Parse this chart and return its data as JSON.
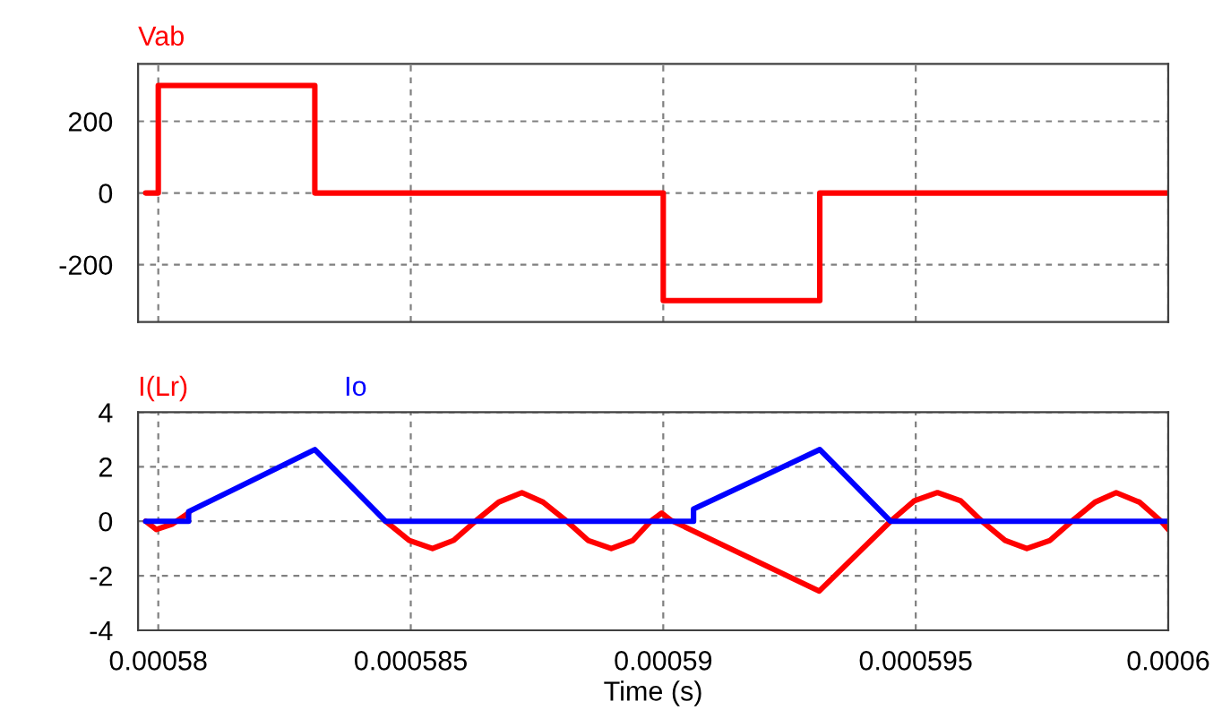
{
  "chart_data": [
    {
      "type": "line",
      "xlim": [
        0.0005796,
        0.0006
      ],
      "xticks": [
        0.00058,
        0.000585,
        0.00059,
        0.000595,
        0.0006
      ],
      "ylim": [
        -360,
        360
      ],
      "yticks": [
        -200,
        0,
        200
      ],
      "grid": true,
      "tick_labels": "y",
      "series": [
        {
          "name": "Vab",
          "color": "#ff0000",
          "x": [
            0.00057975,
            0.00058,
            0.00058,
            0.0005831,
            0.0005831,
            0.00059,
            0.00059,
            0.0005931,
            0.0005931,
            0.0006
          ],
          "values": [
            0,
            0,
            300,
            300,
            0,
            0,
            -300,
            -300,
            0,
            0
          ]
        }
      ]
    },
    {
      "type": "line",
      "xlabel": "Time (s)",
      "xlim": [
        0.0005796,
        0.0006
      ],
      "xticks": [
        0.00058,
        0.000585,
        0.00059,
        0.000595,
        0.0006
      ],
      "ylim": [
        -4,
        4
      ],
      "yticks": [
        -4,
        -2,
        0,
        2,
        4
      ],
      "grid": true,
      "series": [
        {
          "name": "I(Lr)",
          "color": "#ff0000",
          "x": [
            0.00057975,
            0.00057996,
            0.00058028,
            0.0005806,
            0.0005808,
            0.0005845,
            0.00058497,
            0.00058543,
            0.00058585,
            0.00058628,
            0.00058674,
            0.0005872,
            0.00058762,
            0.00058809,
            0.00058851,
            0.00058897,
            0.0005894,
            0.00058975,
            0.00058997,
            0.00059014,
            0.00059309,
            0.0005945,
            0.00059497,
            0.00059543,
            0.00059589,
            0.00059631,
            0.00059677,
            0.0005972,
            0.00059766,
            0.00059809,
            0.00059855,
            0.00059897,
            0.00059943,
            0.00059986,
            0.0006
          ],
          "values": [
            0,
            -0.3,
            -0.1,
            0.3,
            null,
            0,
            -0.7,
            -1.0,
            -0.7,
            0,
            0.7,
            1.05,
            0.7,
            0,
            -0.7,
            -1.0,
            -0.7,
            0,
            0.3,
            0.05,
            -2.56,
            0,
            0.75,
            1.05,
            0.75,
            0,
            -0.7,
            -1.0,
            -0.7,
            0,
            0.7,
            1.05,
            0.7,
            0,
            -0.3
          ]
        },
        {
          "name": "Io",
          "color": "#0000ff",
          "x": [
            0.00057975,
            0.0005806,
            0.0005806,
            0.0005831,
            0.0005845,
            0.0005906,
            0.0005906,
            0.0005931,
            0.0005945,
            0.0006
          ],
          "values": [
            0,
            0,
            0.35,
            2.63,
            0,
            0,
            0.45,
            2.63,
            0,
            0
          ]
        }
      ]
    }
  ]
}
